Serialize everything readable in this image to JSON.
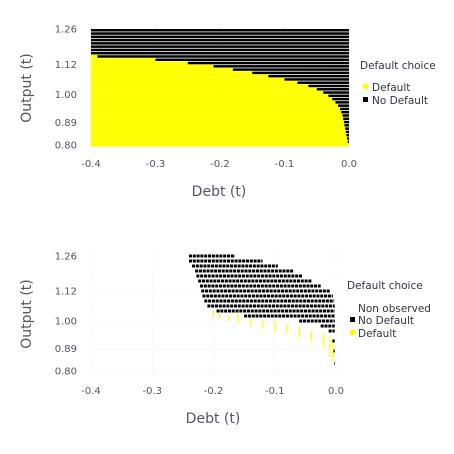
{
  "chart_data": [
    {
      "type": "heatmap",
      "xlabel": "Debt (t)",
      "ylabel": "Output (t)",
      "xlim": [
        -0.4,
        0.0
      ],
      "ylim": [
        0.78,
        1.28
      ],
      "x_ticks": [
        -0.4,
        -0.3,
        -0.2,
        -0.1,
        0.0
      ],
      "x_tick_labels": [
        "-0.4",
        "-0.3",
        "-0.2",
        "-0.1",
        "0.0"
      ],
      "y_ticks": [
        0.8,
        0.89,
        1.0,
        1.12,
        1.26
      ],
      "y_tick_labels": [
        "0.80",
        "0.89",
        "1.00",
        "1.12",
        "1.26"
      ],
      "legend": {
        "title": "Default choice",
        "placement": "right",
        "entries": [
          {
            "label": "Default",
            "color": "#ffff00"
          },
          {
            "label": "No Default",
            "color": "#000000"
          }
        ]
      },
      "default_color": "#ffff00",
      "no_default_color": "#000000",
      "grid_y": [
        0.8,
        0.813,
        0.826,
        0.839,
        0.852,
        0.865,
        0.878,
        0.891,
        0.904,
        0.917,
        0.93,
        0.943,
        0.956,
        0.969,
        0.982,
        0.995,
        1.008,
        1.021,
        1.034,
        1.047,
        1.06,
        1.073,
        1.086,
        1.099,
        1.112,
        1.125,
        1.138,
        1.151,
        1.164,
        1.177,
        1.19,
        1.203,
        1.216,
        1.229,
        1.242,
        1.255
      ],
      "default_boundary_debt": [
        0.0,
        -0.002,
        -0.003,
        -0.004,
        -0.005,
        -0.006,
        -0.007,
        -0.008,
        -0.009,
        -0.01,
        -0.012,
        -0.014,
        -0.017,
        -0.021,
        -0.026,
        -0.032,
        -0.04,
        -0.05,
        -0.063,
        -0.08,
        -0.1,
        -0.125,
        -0.15,
        -0.18,
        -0.21,
        -0.25,
        -0.3,
        -0.39,
        -0.4,
        -0.4,
        -0.4,
        -0.4,
        -0.4,
        -0.4,
        -0.4,
        -0.4
      ]
    },
    {
      "type": "scatter",
      "xlabel": "Debt (t)",
      "ylabel": "Output (t)",
      "xlim": [
        -0.4,
        0.0
      ],
      "ylim": [
        0.78,
        1.28
      ],
      "x_ticks": [
        -0.4,
        -0.3,
        -0.2,
        -0.1,
        0.0
      ],
      "x_tick_labels": [
        "-0.4",
        "-0.3",
        "-0.2",
        "-0.1",
        "0.0"
      ],
      "y_ticks": [
        0.8,
        0.89,
        1.0,
        1.12,
        1.26
      ],
      "y_tick_labels": [
        "0.80",
        "0.89",
        "1.00",
        "1.12",
        "1.26"
      ],
      "legend": {
        "title": "Default choice",
        "placement": "right",
        "entries": [
          {
            "label": "Non observed",
            "color": "#ffffff"
          },
          {
            "label": "No Default",
            "color": "#000000"
          },
          {
            "label": "Default",
            "color": "#ffff00"
          }
        ]
      },
      "no_default_rows": [
        {
          "y": 1.26,
          "x_min": -0.24,
          "x_max": -0.165
        },
        {
          "y": 1.24,
          "x_min": -0.24,
          "x_max": -0.12
        },
        {
          "y": 1.22,
          "x_min": -0.235,
          "x_max": -0.095
        },
        {
          "y": 1.2,
          "x_min": -0.23,
          "x_max": -0.07
        },
        {
          "y": 1.18,
          "x_min": -0.228,
          "x_max": -0.055
        },
        {
          "y": 1.16,
          "x_min": -0.225,
          "x_max": -0.04
        },
        {
          "y": 1.14,
          "x_min": -0.222,
          "x_max": -0.025
        },
        {
          "y": 1.12,
          "x_min": -0.22,
          "x_max": -0.01
        },
        {
          "y": 1.1,
          "x_min": -0.218,
          "x_max": -0.005
        },
        {
          "y": 1.08,
          "x_min": -0.215,
          "x_max": -0.003
        },
        {
          "y": 1.06,
          "x_min": -0.21,
          "x_max": -0.002
        },
        {
          "y": 1.04,
          "x_min": -0.195,
          "x_max": -0.002
        },
        {
          "y": 1.02,
          "x_min": -0.15,
          "x_max": -0.002
        },
        {
          "y": 1.0,
          "x_min": -0.06,
          "x_max": -0.002
        },
        {
          "y": 0.98,
          "x_min": -0.025,
          "x_max": -0.002
        },
        {
          "y": 0.96,
          "x_min": -0.012,
          "x_max": -0.002
        },
        {
          "y": 0.92,
          "x_min": -0.006,
          "x_max": -0.002
        },
        {
          "y": 0.88,
          "x_min": -0.004,
          "x_max": -0.002
        },
        {
          "y": 0.83,
          "x_min": -0.003,
          "x_max": -0.002
        }
      ],
      "default_spikes": [
        {
          "x": -0.2,
          "y_top": 1.04,
          "y_bottom": 1.02
        },
        {
          "x": -0.19,
          "y_top": 1.03,
          "y_bottom": 1.01
        },
        {
          "x": -0.175,
          "y_top": 1.02,
          "y_bottom": 1.0
        },
        {
          "x": -0.16,
          "y_top": 1.03,
          "y_bottom": 0.99
        },
        {
          "x": -0.14,
          "y_top": 1.01,
          "y_bottom": 0.98
        },
        {
          "x": -0.12,
          "y_top": 1.0,
          "y_bottom": 0.97
        },
        {
          "x": -0.1,
          "y_top": 1.0,
          "y_bottom": 0.96
        },
        {
          "x": -0.08,
          "y_top": 0.99,
          "y_bottom": 0.95
        },
        {
          "x": -0.06,
          "y_top": 0.98,
          "y_bottom": 0.93
        },
        {
          "x": -0.04,
          "y_top": 0.96,
          "y_bottom": 0.92
        },
        {
          "x": -0.02,
          "y_top": 0.95,
          "y_bottom": 0.89
        },
        {
          "x": -0.01,
          "y_top": 0.94,
          "y_bottom": 0.86
        },
        {
          "x": -0.005,
          "y_top": 0.92,
          "y_bottom": 0.84
        }
      ]
    }
  ]
}
